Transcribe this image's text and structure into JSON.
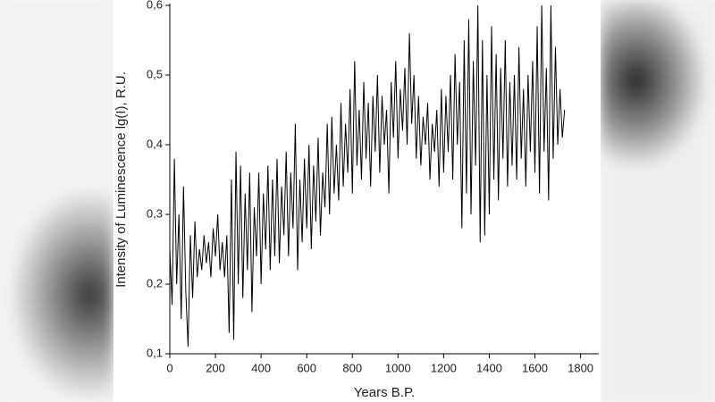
{
  "chart_data": {
    "type": "line",
    "x_label": "Years B.P.",
    "y_label": "Intensity of Luminescence lg(I), R.U.",
    "x": [
      0,
      10,
      20,
      30,
      40,
      50,
      60,
      70,
      80,
      90,
      100,
      110,
      120,
      130,
      140,
      150,
      160,
      170,
      180,
      190,
      200,
      210,
      220,
      230,
      240,
      250,
      260,
      270,
      280,
      290,
      300,
      310,
      320,
      330,
      340,
      350,
      360,
      370,
      380,
      390,
      400,
      410,
      420,
      430,
      440,
      450,
      460,
      470,
      480,
      490,
      500,
      510,
      520,
      530,
      540,
      550,
      560,
      570,
      580,
      590,
      600,
      610,
      620,
      630,
      640,
      650,
      660,
      670,
      680,
      690,
      700,
      710,
      720,
      730,
      740,
      750,
      760,
      770,
      780,
      790,
      800,
      810,
      820,
      830,
      840,
      850,
      860,
      870,
      880,
      890,
      900,
      910,
      920,
      930,
      940,
      950,
      960,
      970,
      980,
      990,
      1000,
      1010,
      1020,
      1030,
      1040,
      1050,
      1060,
      1070,
      1080,
      1090,
      1100,
      1110,
      1120,
      1130,
      1140,
      1150,
      1160,
      1170,
      1180,
      1190,
      1200,
      1210,
      1220,
      1230,
      1240,
      1250,
      1260,
      1270,
      1280,
      1290,
      1300,
      1310,
      1320,
      1330,
      1340,
      1350,
      1360,
      1370,
      1380,
      1390,
      1400,
      1410,
      1420,
      1430,
      1440,
      1450,
      1460,
      1470,
      1480,
      1490,
      1500,
      1510,
      1520,
      1530,
      1540,
      1550,
      1560,
      1570,
      1580,
      1590,
      1600,
      1610,
      1620,
      1630,
      1640,
      1650,
      1660,
      1670,
      1680,
      1690,
      1700,
      1710,
      1720,
      1730
    ],
    "values": [
      0.25,
      0.17,
      0.38,
      0.2,
      0.3,
      0.15,
      0.34,
      0.19,
      0.11,
      0.27,
      0.18,
      0.29,
      0.21,
      0.25,
      0.22,
      0.27,
      0.23,
      0.26,
      0.21,
      0.28,
      0.24,
      0.3,
      0.22,
      0.26,
      0.21,
      0.27,
      0.13,
      0.35,
      0.12,
      0.39,
      0.2,
      0.37,
      0.18,
      0.33,
      0.22,
      0.36,
      0.16,
      0.31,
      0.24,
      0.36,
      0.2,
      0.33,
      0.25,
      0.37,
      0.22,
      0.35,
      0.24,
      0.38,
      0.23,
      0.34,
      0.27,
      0.39,
      0.24,
      0.36,
      0.28,
      0.43,
      0.22,
      0.35,
      0.26,
      0.38,
      0.28,
      0.4,
      0.25,
      0.37,
      0.29,
      0.41,
      0.27,
      0.36,
      0.31,
      0.43,
      0.3,
      0.44,
      0.33,
      0.4,
      0.32,
      0.46,
      0.34,
      0.43,
      0.36,
      0.48,
      0.33,
      0.52,
      0.37,
      0.45,
      0.35,
      0.49,
      0.38,
      0.46,
      0.34,
      0.47,
      0.39,
      0.5,
      0.36,
      0.47,
      0.4,
      0.45,
      0.33,
      0.49,
      0.41,
      0.52,
      0.38,
      0.48,
      0.42,
      0.51,
      0.4,
      0.56,
      0.43,
      0.5,
      0.38,
      0.47,
      0.37,
      0.44,
      0.4,
      0.46,
      0.35,
      0.43,
      0.39,
      0.45,
      0.34,
      0.48,
      0.36,
      0.47,
      0.39,
      0.5,
      0.35,
      0.53,
      0.4,
      0.49,
      0.28,
      0.55,
      0.33,
      0.58,
      0.3,
      0.52,
      0.37,
      0.6,
      0.26,
      0.55,
      0.27,
      0.5,
      0.3,
      0.57,
      0.35,
      0.53,
      0.32,
      0.51,
      0.38,
      0.55,
      0.34,
      0.49,
      0.37,
      0.5,
      0.35,
      0.54,
      0.38,
      0.48,
      0.34,
      0.5,
      0.39,
      0.52,
      0.36,
      0.57,
      0.33,
      0.6,
      0.39,
      0.51,
      0.32,
      0.6,
      0.38,
      0.54,
      0.4,
      0.48,
      0.41,
      0.45
    ],
    "color": "#000000",
    "xlim": [
      0,
      1880
    ],
    "xticks": [
      0,
      200,
      400,
      600,
      800,
      1000,
      1200,
      1400,
      1600,
      1800
    ],
    "ylim": [
      0.1,
      0.6
    ],
    "yticks": [
      {
        "value": 0.1,
        "label": "0,1"
      },
      {
        "value": 0.2,
        "label": "0,2"
      },
      {
        "value": 0.3,
        "label": "0,3"
      },
      {
        "value": 0.4,
        "label": "0,4"
      },
      {
        "value": 0.5,
        "label": "0,5"
      },
      {
        "value": 0.6,
        "label": "0,6"
      }
    ],
    "grid": false
  }
}
